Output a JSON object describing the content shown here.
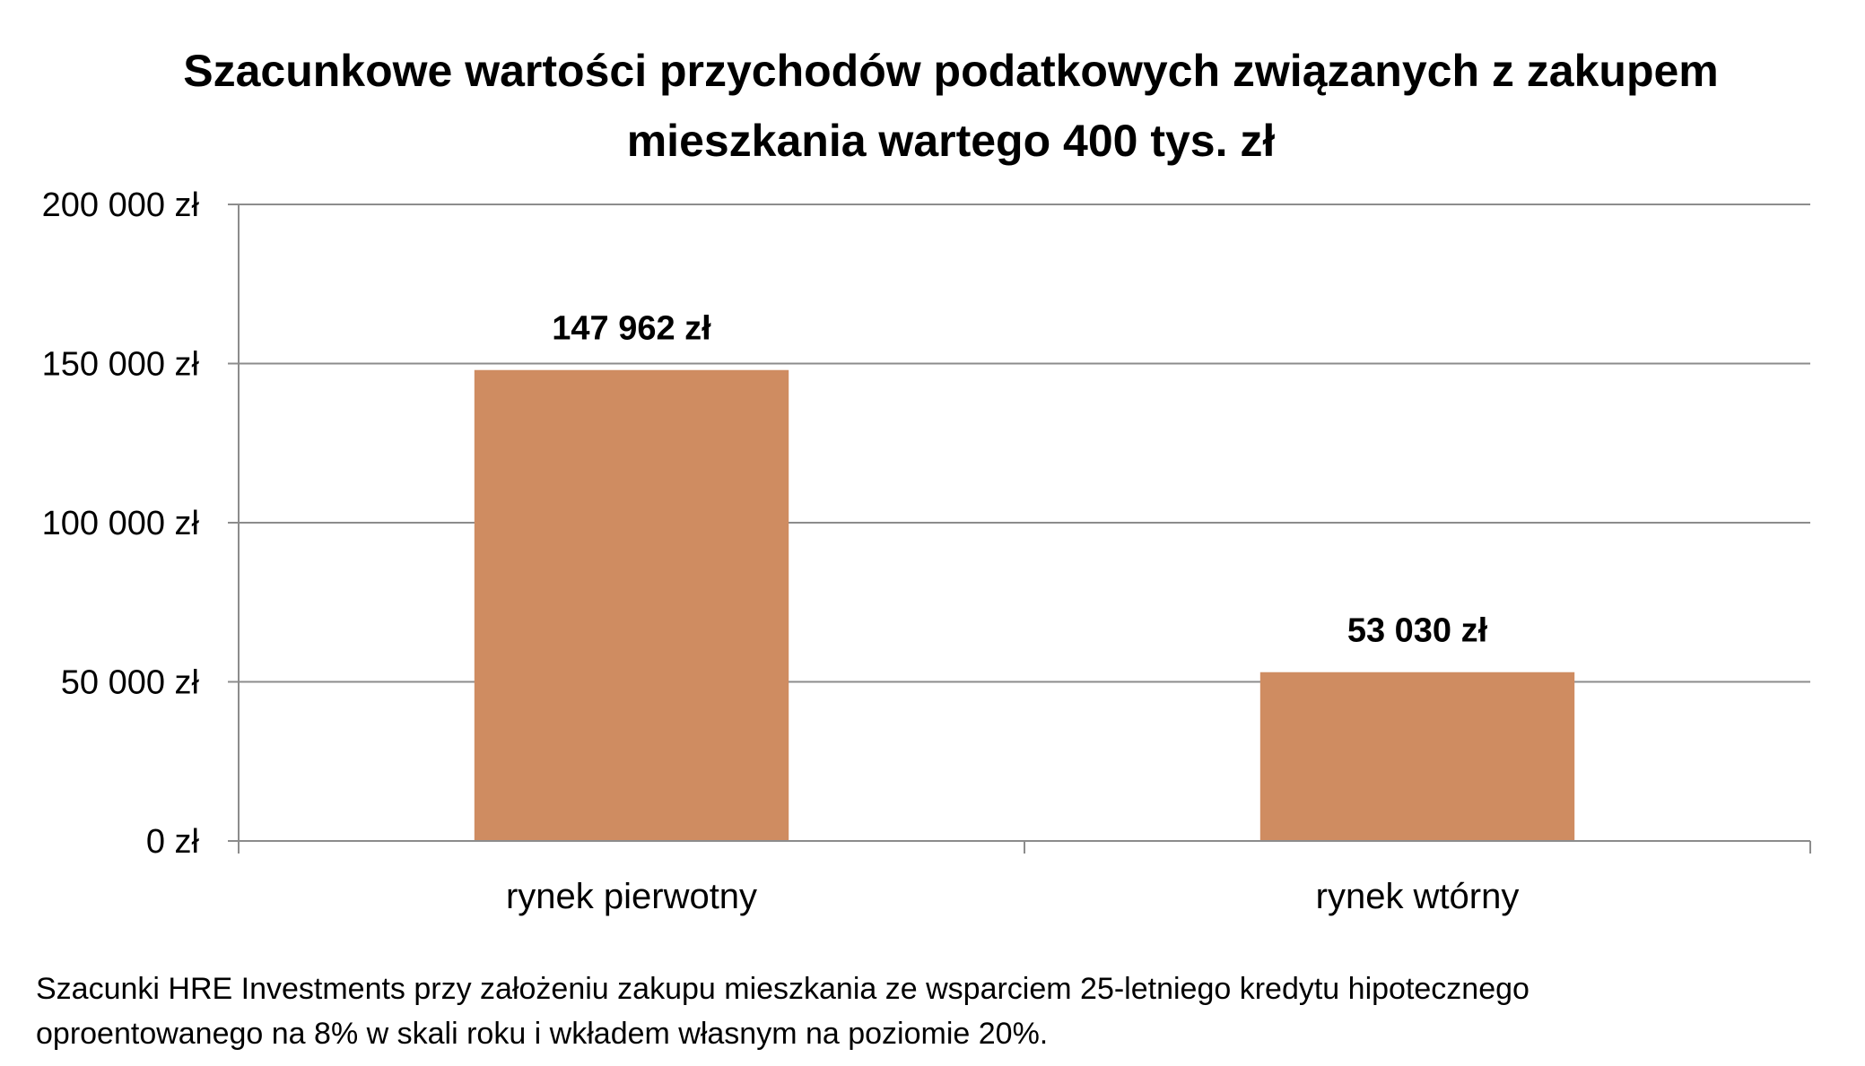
{
  "chart_data": {
    "type": "bar",
    "title_line1": "Szacunkowe wartości przychodów podatkowych związanych z zakupem",
    "title_line2": "mieszkania wartego 400 tys. zł",
    "categories": [
      "rynek pierwotny",
      "rynek wtórny"
    ],
    "values": [
      147962,
      53030
    ],
    "data_labels": [
      "147 962 zł",
      "53 030 zł"
    ],
    "y_ticks": [
      0,
      50000,
      100000,
      150000,
      200000
    ],
    "y_tick_labels": [
      "0 zł",
      "50 000 zł",
      "100 000 zł",
      "150 000 zł",
      "200 000 zł"
    ],
    "ylim": [
      0,
      200000
    ],
    "grid": true,
    "legend": "none",
    "bar_color": "#cf8c61",
    "grid_color": "#8c8c8c",
    "axis_color": "#8c8c8c"
  },
  "note": {
    "line1": "Szacunki HRE Investments przy założeniu zakupu mieszkania ze wsparciem 25-letniego kredytu hipotecznego",
    "line2": "oproentowanego na 8% w skali roku i wkładem własnym na poziomie 20%."
  }
}
